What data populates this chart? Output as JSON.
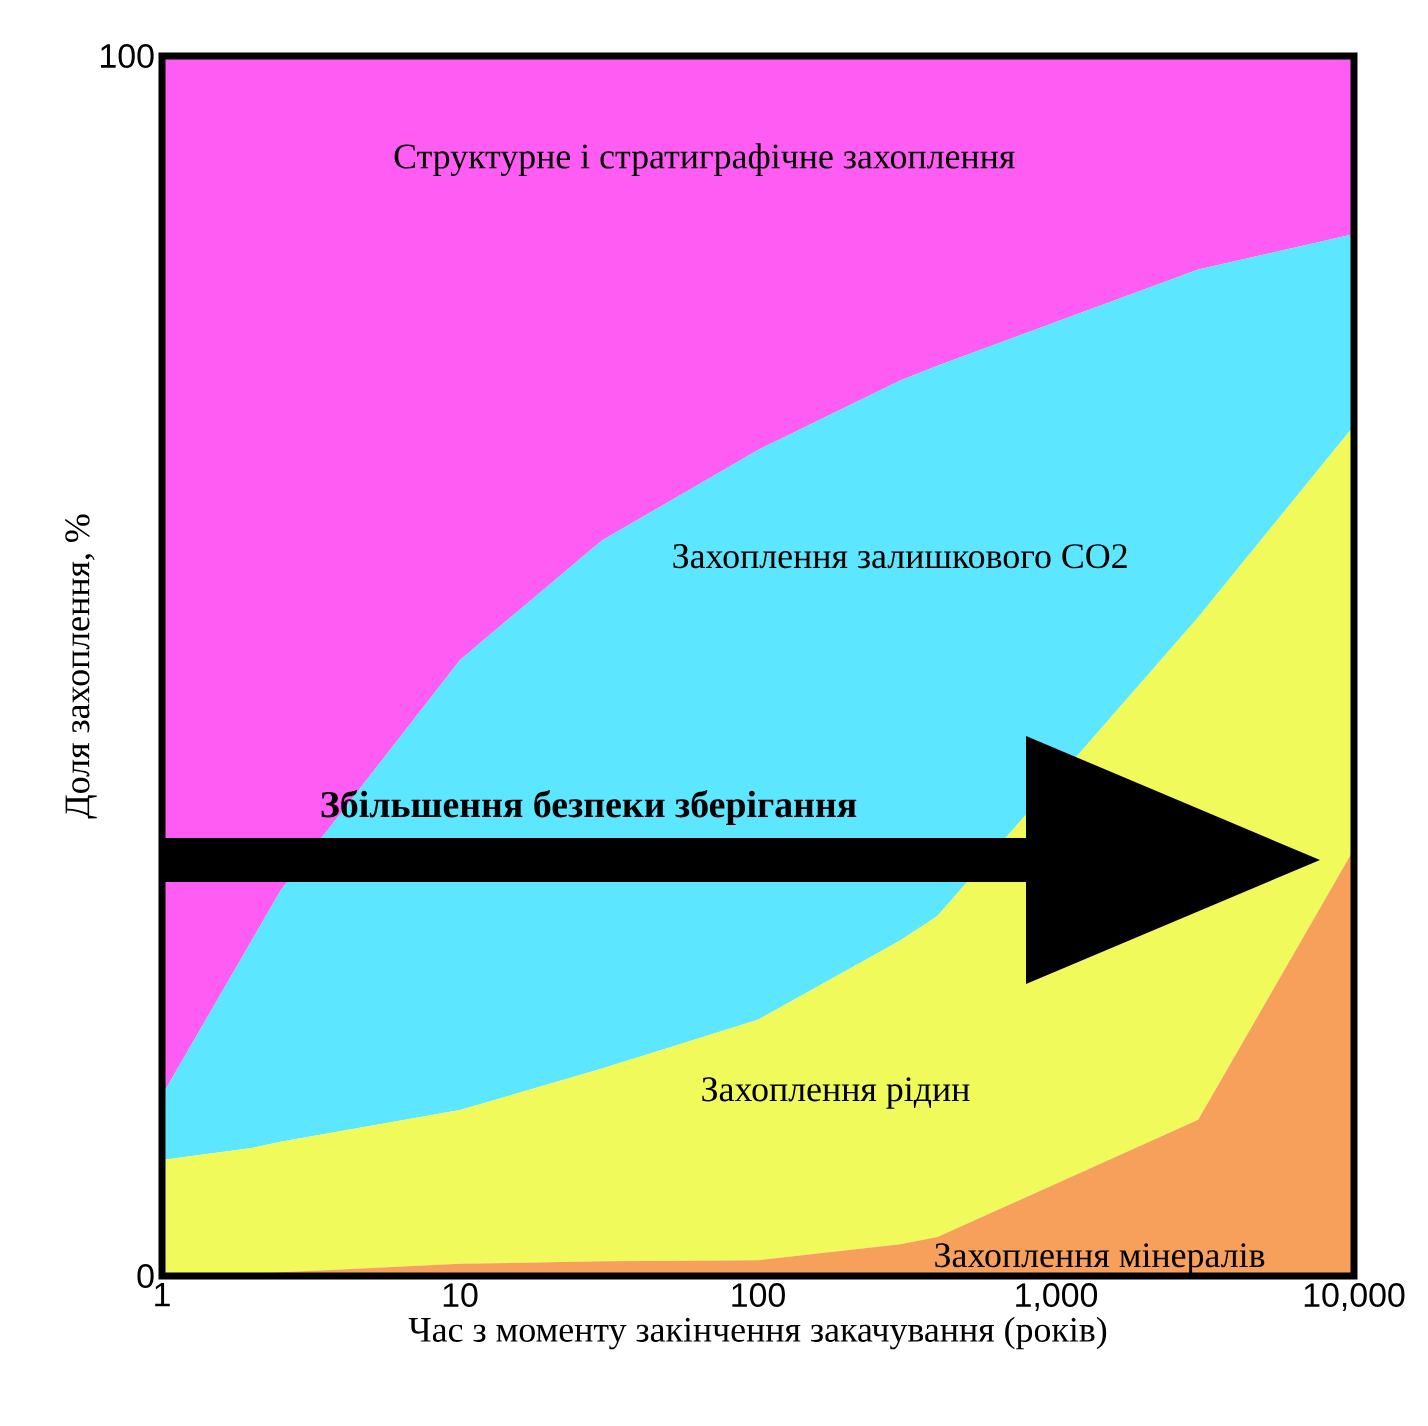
{
  "chart_data": {
    "type": "area",
    "stacked": true,
    "log": "x",
    "xlabel": "Час з моменту закінчення закачування (років)",
    "ylabel": "Доля захоплення, %",
    "x": [
      1,
      2,
      2.5,
      10,
      30,
      100,
      300,
      400,
      3000,
      10000
    ],
    "xlim": [
      1,
      10000
    ],
    "ylim": [
      0,
      100
    ],
    "xticks": [
      1,
      10,
      100,
      {
        "value": 1000,
        "label": "1,000"
      },
      {
        "value": 10000,
        "label": "10,000"
      }
    ],
    "yticks": [
      0,
      100
    ],
    "series": [
      {
        "name": "Захоплення мінералів",
        "color": "#f7a05c",
        "values": [
          0,
          0.2,
          0.3,
          1,
          1.2,
          1.3,
          2.6,
          3.2,
          12.8,
          35
        ]
      },
      {
        "name": "Захоплення рідин",
        "color": "#f0fa5a",
        "values": [
          9.5,
          10.3,
          10.7,
          12.6,
          15.8,
          19.7,
          24.9,
          26.3,
          41.2,
          34.7
        ]
      },
      {
        "name": "Захоплення залишкового CO2",
        "color": "#5ce6ff",
        "values": [
          5.3,
          17,
          20.6,
          36.9,
          43.3,
          46.7,
          45.9,
          45.1,
          28.5,
          15.7
        ]
      },
      {
        "name": "Структурне і стратиграфічне захоплення",
        "color": "#ff5cf3",
        "values": [
          85.2,
          72.5,
          68.4,
          49.5,
          39.7,
          32.3,
          26.6,
          25.4,
          17.5,
          14.6
        ]
      }
    ],
    "annotations": [
      "**Збільшення безпеки зберігання**"
    ]
  }
}
